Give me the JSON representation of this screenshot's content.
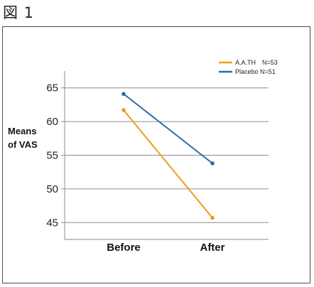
{
  "figure_label": "図 1",
  "chart_data": {
    "type": "line",
    "categories": [
      "Before",
      "After"
    ],
    "series": [
      {
        "name": "A.A.TH　N=53",
        "values": [
          61.7,
          45.7
        ],
        "color": "#ef9a1f"
      },
      {
        "name": "Placebo  N=51",
        "values": [
          64.1,
          53.8
        ],
        "color": "#2c6aa8"
      }
    ],
    "ylabel_lines": [
      "Means",
      "of VAS"
    ],
    "yticks": [
      45,
      50,
      55,
      60,
      65
    ],
    "ylim": [
      42.5,
      67.5
    ],
    "grid": true,
    "legend": "top-right"
  }
}
